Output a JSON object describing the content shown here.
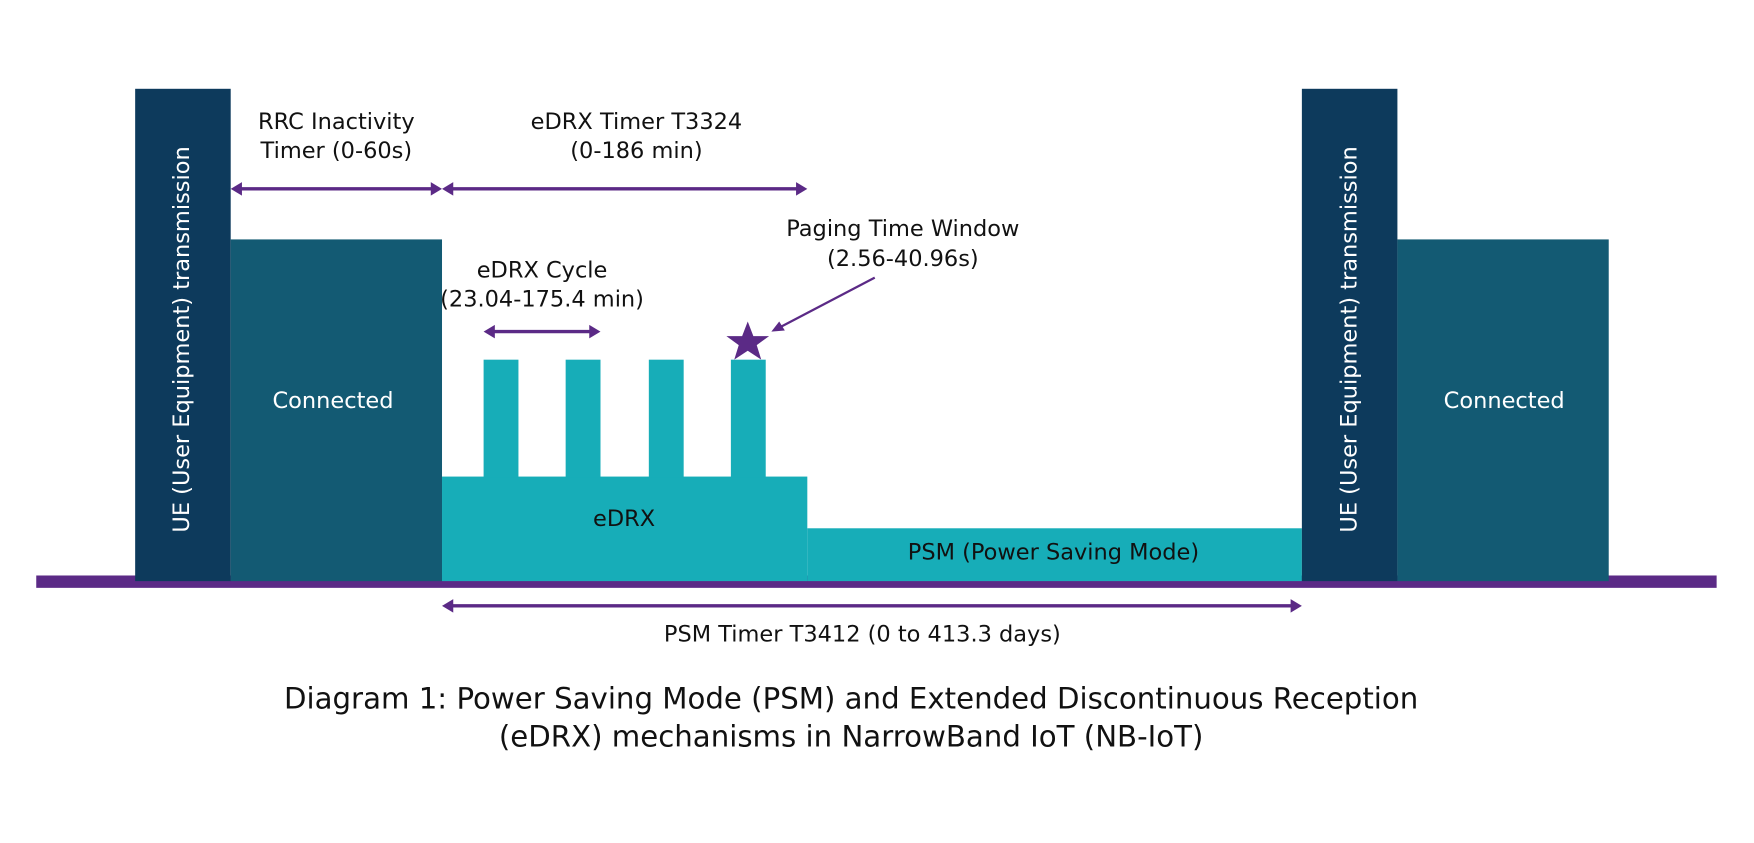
{
  "diagram": {
    "rrc_timer": [
      "RRC Inactivity",
      "Timer (0-60s)"
    ],
    "edrx_timer": [
      "eDRX Timer T3324",
      "(0-186 min)"
    ],
    "paging_window": [
      "Paging Time Window",
      "(2.56-40.96s)"
    ],
    "edrx_cycle": [
      "eDRX Cycle",
      "(23.04-175.4 min)"
    ],
    "ue_transmission": "UE (User Equipment) transmission",
    "connected": "Connected",
    "edrx": "eDRX",
    "psm": "PSM (Power Saving Mode)",
    "psm_timer": "PSM Timer T3412 (0 to 413.3 days)",
    "caption": [
      "Diagram 1: Power Saving Mode (PSM) and Extended Discontinuous Reception",
      "(eDRX) mechanisms in NarrowBand IoT (NB-IoT)"
    ]
  }
}
